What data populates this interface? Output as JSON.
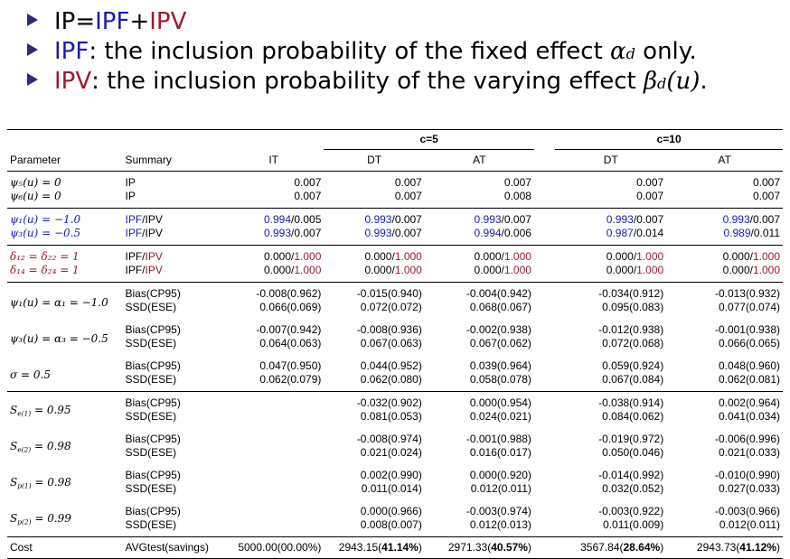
{
  "bullets": [
    {
      "p1": "IP=",
      "p2": "IPF",
      "p3": "+",
      "p4": "IPV",
      "text": "",
      "math_sym": "",
      "math_sub": "",
      "math_arg": "",
      "tail": ""
    },
    {
      "p1": "",
      "p2": "IPF",
      "p3": "",
      "p4": "",
      "text": ": the inclusion probability of the fixed effect ",
      "math_sym": "α",
      "math_sub": "d",
      "math_arg": "",
      "tail": " only."
    },
    {
      "p1": "",
      "p2": "",
      "p3": "",
      "p4": "IPV",
      "text": ": the inclusion probability of the varying effect ",
      "math_sym": "β",
      "math_sub": "d",
      "math_arg": "(u)",
      "tail": "."
    }
  ],
  "table": {
    "groups": {
      "c5": "c=5",
      "c10": "c=10"
    },
    "headers": {
      "parameter": "Parameter",
      "summary": "Summary",
      "it": "IT",
      "dt5": "DT",
      "at5": "AT",
      "dt10": "DT",
      "at10": "AT"
    },
    "ip_rows": [
      {
        "param": "ψ₅(u) = 0",
        "summary": "IP",
        "vals": [
          "0.007",
          "0.007",
          "0.007",
          "0.007",
          "0.007"
        ]
      },
      {
        "param": "ψ₆(u) = 0",
        "summary": "IP",
        "vals": [
          "0.007",
          "0.007",
          "0.008",
          "0.007",
          "0.007"
        ]
      }
    ],
    "ipv_rows": [
      {
        "param": "ψ₁(u) = −1.0",
        "summary_a": "IPF",
        "summary_b": "/IPV",
        "vals": [
          [
            "0.994",
            "/0.005"
          ],
          [
            "0.993",
            "/0.007"
          ],
          [
            "0.993",
            "/0.007"
          ],
          [
            "0.993",
            "/0.007"
          ],
          [
            "0.993",
            "/0.007"
          ]
        ]
      },
      {
        "param": "ψ₃(u) = −0.5",
        "summary_a": "IPF",
        "summary_b": "/IPV",
        "vals": [
          [
            "0.993",
            "/0.007"
          ],
          [
            "0.993",
            "/0.007"
          ],
          [
            "0.994",
            "/0.006"
          ],
          [
            "0.987",
            "/0.014"
          ],
          [
            "0.989",
            "/0.011"
          ]
        ]
      }
    ],
    "delta_rows": [
      {
        "param": "δ₁₂ = δ₂₂ = 1",
        "summary_a": "IPF/",
        "summary_b": "IPV",
        "vals": [
          [
            "0.000/",
            "1.000"
          ],
          [
            "0.000/",
            "1.000"
          ],
          [
            "0.000/",
            "1.000"
          ],
          [
            "0.000/",
            "1.000"
          ],
          [
            "0.000/",
            "1.000"
          ]
        ]
      },
      {
        "param": "δ₁₄ = δ₂₄ = 1",
        "summary_a": "IPF/",
        "summary_b": "IPV",
        "vals": [
          [
            "0.000/",
            "1.000"
          ],
          [
            "0.000/",
            "1.000"
          ],
          [
            "0.000/",
            "1.000"
          ],
          [
            "0.000/",
            "1.000"
          ],
          [
            "0.000/",
            "1.000"
          ]
        ]
      }
    ],
    "est_blocks": [
      {
        "param": "ψ₁(u) = α₁ = −1.0",
        "rows": [
          {
            "summary": "Bias(CP95)",
            "vals": [
              "-0.008(0.962)",
              "-0.015(0.940)",
              "-0.004(0.942)",
              "-0.034(0.912)",
              "-0.013(0.932)"
            ]
          },
          {
            "summary": "SSD(ESE)",
            "vals": [
              "0.066(0.069)",
              "0.072(0.072)",
              "0.068(0.067)",
              "0.095(0.083)",
              "0.077(0.074)"
            ]
          }
        ]
      },
      {
        "param": "ψ₃(u) = α₃ = −0.5",
        "rows": [
          {
            "summary": "Bias(CP95)",
            "vals": [
              "-0.007(0.942)",
              "-0.008(0.936)",
              "-0.002(0.938)",
              "-0.012(0.938)",
              "-0.001(0.938)"
            ]
          },
          {
            "summary": "SSD(ESE)",
            "vals": [
              "0.064(0.063)",
              "0.067(0.063)",
              "0.067(0.062)",
              "0.072(0.068)",
              "0.066(0.065)"
            ]
          }
        ]
      },
      {
        "param": "σ = 0.5",
        "rows": [
          {
            "summary": "Bias(CP95)",
            "vals": [
              "0.047(0.950)",
              "0.044(0.952)",
              "0.039(0.964)",
              "0.059(0.924)",
              "0.048(0.960)"
            ]
          },
          {
            "summary": "SSD(ESE)",
            "vals": [
              "0.062(0.079)",
              "0.062(0.080)",
              "0.058(0.078)",
              "0.067(0.084)",
              "0.062(0.081)"
            ]
          }
        ]
      }
    ],
    "acc_blocks": [
      {
        "param": "S",
        "sub": "e(1)",
        "val": " = 0.95",
        "rows": [
          {
            "summary": "Bias(CP95)",
            "vals": [
              "",
              "-0.032(0.902)",
              "0.000(0.954)",
              "-0.038(0.914)",
              "0.002(0.964)"
            ]
          },
          {
            "summary": "SSD(ESE)",
            "vals": [
              "",
              "0.081(0.053)",
              "0.024(0.021)",
              "0.084(0.062)",
              "0.041(0.034)"
            ]
          }
        ]
      },
      {
        "param": "S",
        "sub": "e(2)",
        "val": " = 0.98",
        "rows": [
          {
            "summary": "Bias(CP95)",
            "vals": [
              "",
              "-0.008(0.974)",
              "-0.001(0.988)",
              "-0.019(0.972)",
              "-0.006(0.996)"
            ]
          },
          {
            "summary": "SSD(ESE)",
            "vals": [
              "",
              "0.021(0.024)",
              "0.016(0.017)",
              "0.050(0.046)",
              "0.021(0.033)"
            ]
          }
        ]
      },
      {
        "param": "S",
        "sub": "p(1)",
        "val": " = 0.98",
        "rows": [
          {
            "summary": "Bias(CP95)",
            "vals": [
              "",
              "0.002(0.990)",
              "0.000(0.920)",
              "-0.014(0.992)",
              "-0.010(0.990)"
            ]
          },
          {
            "summary": "SSD(ESE)",
            "vals": [
              "",
              "0.011(0.014)",
              "0.012(0.011)",
              "0.032(0.052)",
              "0.027(0.033)"
            ]
          }
        ]
      },
      {
        "param": "S",
        "sub": "p(2)",
        "val": " = 0.99",
        "rows": [
          {
            "summary": "Bias(CP95)",
            "vals": [
              "",
              "0.000(0.966)",
              "-0.003(0.974)",
              "-0.003(0.922)",
              "-0.003(0.966)"
            ]
          },
          {
            "summary": "SSD(ESE)",
            "vals": [
              "",
              "0.008(0.007)",
              "0.012(0.013)",
              "0.011(0.009)",
              "0.012(0.011)"
            ]
          }
        ]
      }
    ],
    "cost": {
      "param": "Cost",
      "summary": "AVGtest(savings)",
      "vals": [
        {
          "a": "5000.00(00.00%)",
          "b": "",
          "c": ""
        },
        {
          "a": "2943.15(",
          "b": "41.14%",
          "c": ")"
        },
        {
          "a": "2971.33(",
          "b": "40.57%",
          "c": ")"
        },
        {
          "a": "3567.84(",
          "b": "28.64%",
          "c": ")"
        },
        {
          "a": "2943.73(",
          "b": "41.12%",
          "c": ")"
        }
      ]
    }
  }
}
